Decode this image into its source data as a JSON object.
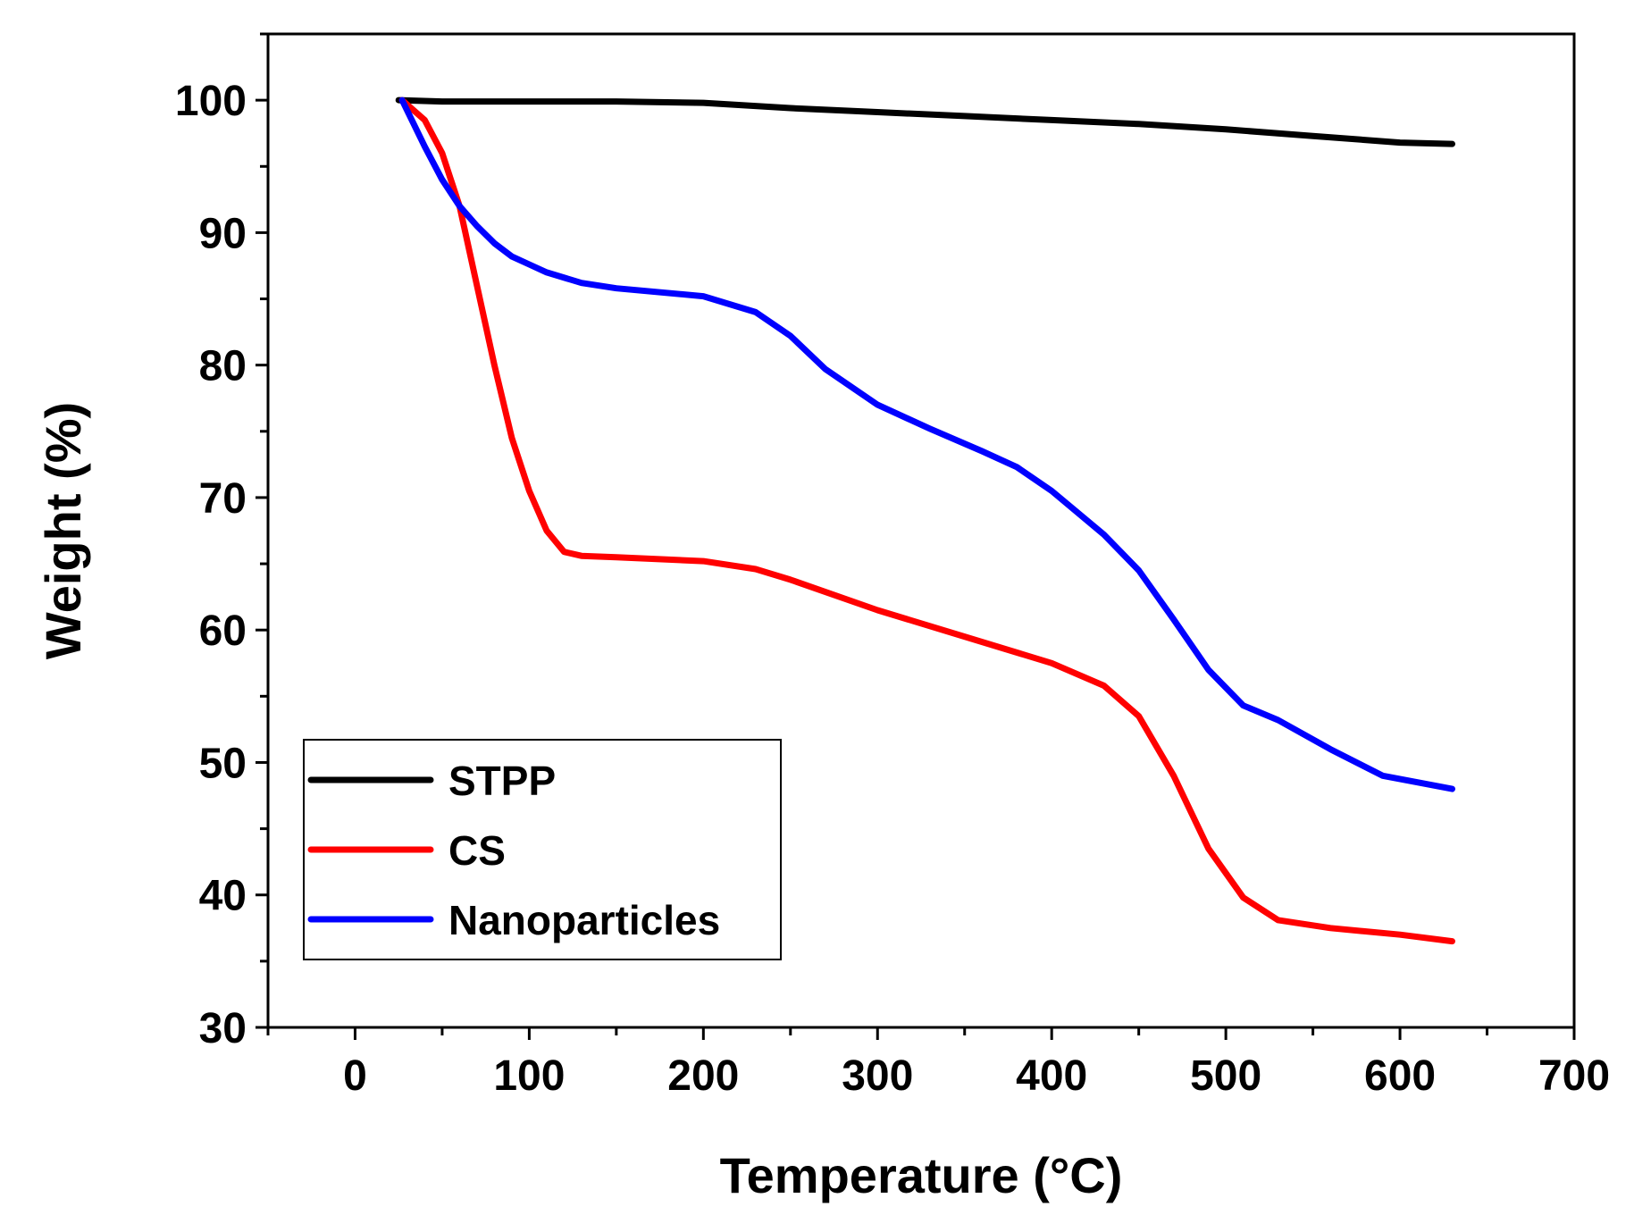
{
  "chart_data": {
    "type": "line",
    "xlabel": "Temperature (°C)",
    "ylabel": "Weight (%)",
    "xlim": [
      -50,
      700
    ],
    "ylim": [
      30,
      105
    ],
    "xticks": [
      0,
      100,
      200,
      300,
      400,
      500,
      600,
      700
    ],
    "yticks": [
      30,
      40,
      50,
      60,
      70,
      80,
      90,
      100
    ],
    "grid": false,
    "legend_position": "bottom-left",
    "series": [
      {
        "name": "STPP",
        "color": "#000000",
        "x": [
          25,
          50,
          100,
          150,
          200,
          250,
          300,
          350,
          400,
          450,
          500,
          550,
          600,
          630
        ],
        "y": [
          100,
          99.9,
          99.9,
          99.9,
          99.8,
          99.4,
          99.1,
          98.8,
          98.5,
          98.2,
          97.8,
          97.3,
          96.8,
          96.7
        ]
      },
      {
        "name": "CS",
        "color": "#ff0000",
        "x": [
          27,
          40,
          50,
          60,
          70,
          80,
          90,
          100,
          110,
          120,
          130,
          150,
          200,
          230,
          250,
          300,
          350,
          400,
          430,
          450,
          470,
          490,
          510,
          530,
          560,
          600,
          630
        ],
        "y": [
          100,
          98.5,
          96,
          92,
          86,
          80,
          74.5,
          70.5,
          67.5,
          65.9,
          65.6,
          65.5,
          65.2,
          64.6,
          63.8,
          61.5,
          59.5,
          57.5,
          55.8,
          53.5,
          49,
          43.5,
          39.8,
          38.1,
          37.5,
          37,
          36.5
        ]
      },
      {
        "name": "Nanoparticles",
        "color": "#0000ff",
        "x": [
          27,
          40,
          50,
          60,
          70,
          80,
          90,
          100,
          110,
          130,
          150,
          200,
          230,
          250,
          270,
          300,
          330,
          360,
          380,
          400,
          430,
          450,
          470,
          490,
          510,
          530,
          560,
          590,
          610,
          630
        ],
        "y": [
          100,
          96.5,
          94,
          92,
          90.5,
          89.2,
          88.2,
          87.6,
          87,
          86.2,
          85.8,
          85.2,
          84,
          82.2,
          79.7,
          77,
          75.2,
          73.5,
          72.3,
          70.5,
          67.2,
          64.5,
          60.8,
          57,
          54.3,
          53.2,
          51,
          49,
          48.5,
          48
        ]
      }
    ]
  }
}
